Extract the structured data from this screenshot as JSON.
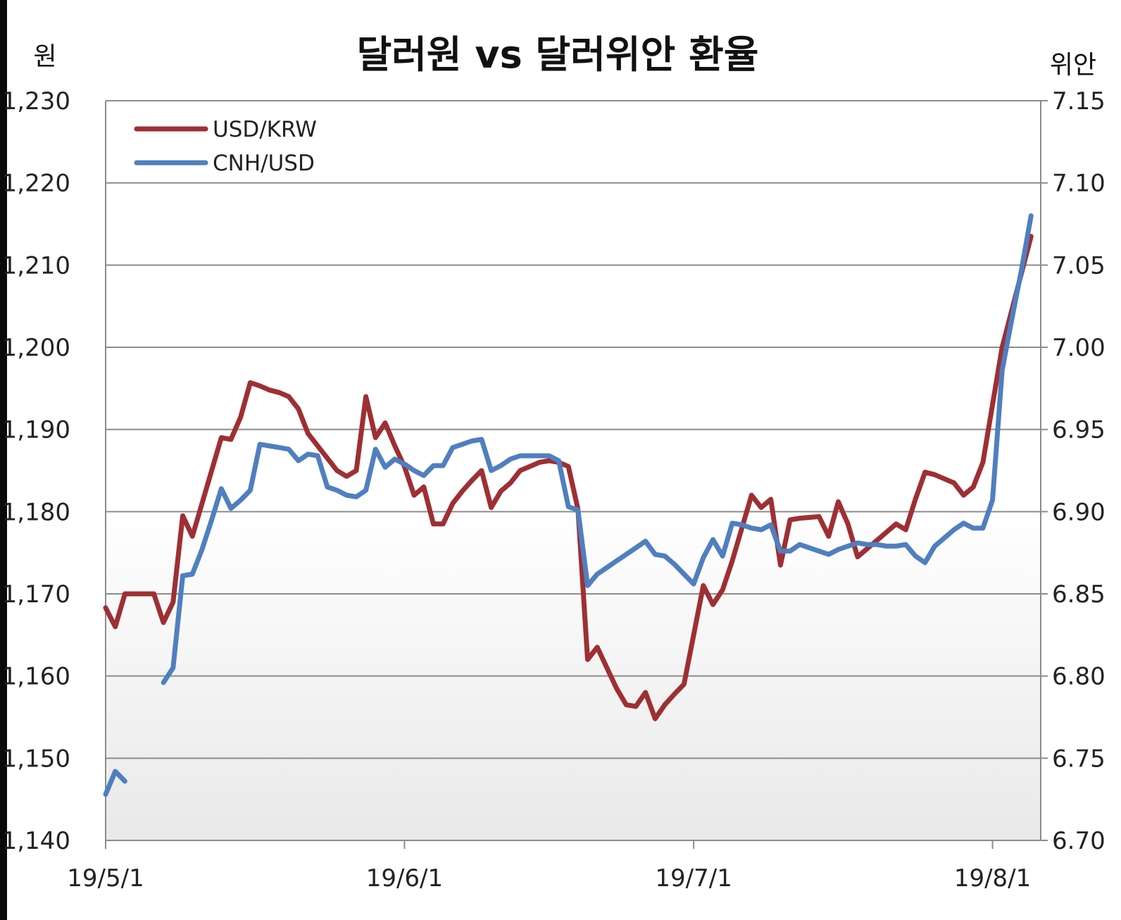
{
  "chart_data": {
    "type": "line",
    "title": "달러원 vs 달러위안 환율",
    "left_axis_label": "원",
    "right_axis_label": "위안",
    "y_left": {
      "range": [
        1140,
        1230
      ],
      "ticks": [
        "1,140",
        "1,150",
        "1,160",
        "1,170",
        "1,180",
        "1,190",
        "1,200",
        "1,210",
        "1,220",
        "1,230"
      ]
    },
    "y_right": {
      "range": [
        6.7,
        7.15
      ],
      "ticks": [
        "6.70",
        "6.75",
        "6.80",
        "6.85",
        "6.90",
        "6.95",
        "7.00",
        "7.05",
        "7.10",
        "7.15"
      ]
    },
    "x_ticks": [
      "19/5/1",
      "19/6/1",
      "19/7/1",
      "19/8/1"
    ],
    "x_tick_days": [
      0,
      31,
      61,
      92
    ],
    "x_range_days": [
      0,
      97
    ],
    "grid": true,
    "legend_position": "top-left",
    "series": [
      {
        "name": "USD/KRW",
        "axis": "left",
        "color": "#9e2f33",
        "points": [
          [
            0,
            1168.3
          ],
          [
            1,
            1166.0
          ],
          [
            2,
            1170.0
          ],
          [
            3,
            1170.0
          ],
          [
            4,
            1170.0
          ],
          [
            5,
            1170.0
          ],
          [
            6,
            1166.5
          ],
          [
            7,
            1169.0
          ],
          [
            8,
            1179.5
          ],
          [
            9,
            1177.0
          ],
          [
            10,
            1181.0
          ],
          [
            11,
            1185.0
          ],
          [
            12,
            1189.0
          ],
          [
            13,
            1188.8
          ],
          [
            14,
            1191.5
          ],
          [
            15,
            1195.7
          ],
          [
            16,
            1195.3
          ],
          [
            17,
            1194.8
          ],
          [
            18,
            1194.5
          ],
          [
            19,
            1194.0
          ],
          [
            20,
            1192.5
          ],
          [
            21,
            1189.5
          ],
          [
            22,
            1188.0
          ],
          [
            23,
            1186.5
          ],
          [
            24,
            1185.0
          ],
          [
            25,
            1184.3
          ],
          [
            26,
            1185.0
          ],
          [
            27,
            1194.0
          ],
          [
            28,
            1189.0
          ],
          [
            29,
            1190.8
          ],
          [
            30,
            1188.0
          ],
          [
            31,
            1185.5
          ],
          [
            32,
            1182.0
          ],
          [
            33,
            1183.0
          ],
          [
            34,
            1178.5
          ],
          [
            35,
            1178.5
          ],
          [
            36,
            1181.0
          ],
          [
            37,
            1182.5
          ],
          [
            38,
            1183.8
          ],
          [
            39,
            1185.0
          ],
          [
            40,
            1180.5
          ],
          [
            41,
            1182.5
          ],
          [
            42,
            1183.5
          ],
          [
            43,
            1185.0
          ],
          [
            44,
            1185.5
          ],
          [
            45,
            1186.0
          ],
          [
            46,
            1186.2
          ],
          [
            47,
            1186.0
          ],
          [
            48,
            1185.5
          ],
          [
            49,
            1180.3
          ],
          [
            50,
            1162.0
          ],
          [
            51,
            1163.5
          ],
          [
            52,
            1161.0
          ],
          [
            53,
            1158.5
          ],
          [
            54,
            1156.5
          ],
          [
            55,
            1156.3
          ],
          [
            56,
            1158.0
          ],
          [
            57,
            1154.8
          ],
          [
            58,
            1156.5
          ],
          [
            59,
            1157.8
          ],
          [
            60,
            1159.0
          ],
          [
            61,
            1165.0
          ],
          [
            62,
            1171.0
          ],
          [
            63,
            1168.7
          ],
          [
            64,
            1170.5
          ],
          [
            65,
            1174.0
          ],
          [
            66,
            1178.0
          ],
          [
            67,
            1182.0
          ],
          [
            68,
            1180.5
          ],
          [
            69,
            1181.5
          ],
          [
            70,
            1173.5
          ],
          [
            71,
            1179.0
          ],
          [
            72,
            1179.2
          ],
          [
            73,
            1179.3
          ],
          [
            74,
            1179.4
          ],
          [
            75,
            1177.0
          ],
          [
            76,
            1181.2
          ],
          [
            77,
            1178.5
          ],
          [
            78,
            1174.5
          ],
          [
            79,
            1175.5
          ],
          [
            80,
            1176.5
          ],
          [
            81,
            1177.5
          ],
          [
            82,
            1178.5
          ],
          [
            83,
            1177.8
          ],
          [
            84,
            1181.5
          ],
          [
            85,
            1184.8
          ],
          [
            86,
            1184.5
          ],
          [
            87,
            1184.0
          ],
          [
            88,
            1183.5
          ],
          [
            89,
            1182.0
          ],
          [
            90,
            1183.0
          ],
          [
            91,
            1186.0
          ],
          [
            92,
            1193.0
          ],
          [
            93,
            1200.0
          ],
          [
            94,
            1204.5
          ],
          [
            95,
            1209.0
          ],
          [
            96,
            1213.5
          ]
        ]
      },
      {
        "name": "CNH/USD",
        "axis": "right",
        "color": "#4f7fbf",
        "segments": [
          [
            [
              0,
              6.728
            ],
            [
              1,
              6.742
            ],
            [
              2,
              6.736
            ]
          ],
          [
            [
              6,
              6.796
            ],
            [
              7,
              6.805
            ],
            [
              8,
              6.861
            ],
            [
              9,
              6.862
            ],
            [
              10,
              6.877
            ],
            [
              11,
              6.895
            ],
            [
              12,
              6.914
            ],
            [
              13,
              6.902
            ],
            [
              14,
              6.907
            ],
            [
              15,
              6.913
            ],
            [
              16,
              6.941
            ],
            [
              17,
              6.94
            ],
            [
              18,
              6.939
            ],
            [
              19,
              6.938
            ],
            [
              20,
              6.931
            ],
            [
              21,
              6.935
            ],
            [
              22,
              6.934
            ],
            [
              23,
              6.915
            ],
            [
              24,
              6.913
            ],
            [
              25,
              6.91
            ],
            [
              26,
              6.909
            ],
            [
              27,
              6.913
            ],
            [
              28,
              6.938
            ],
            [
              29,
              6.927
            ],
            [
              30,
              6.932
            ],
            [
              31,
              6.929
            ],
            [
              32,
              6.925
            ],
            [
              33,
              6.922
            ],
            [
              34,
              6.928
            ],
            [
              35,
              6.928
            ],
            [
              36,
              6.939
            ],
            [
              37,
              6.941
            ],
            [
              38,
              6.943
            ],
            [
              39,
              6.944
            ],
            [
              40,
              6.925
            ],
            [
              41,
              6.928
            ],
            [
              42,
              6.932
            ],
            [
              43,
              6.934
            ],
            [
              44,
              6.934
            ],
            [
              45,
              6.934
            ],
            [
              46,
              6.934
            ],
            [
              47,
              6.931
            ],
            [
              48,
              6.903
            ],
            [
              49,
              6.901
            ],
            [
              50,
              6.855
            ],
            [
              51,
              6.862
            ],
            [
              52,
              6.866
            ],
            [
              53,
              6.87
            ],
            [
              54,
              6.874
            ],
            [
              55,
              6.878
            ],
            [
              56,
              6.882
            ],
            [
              57,
              6.874
            ],
            [
              58,
              6.873
            ],
            [
              59,
              6.868
            ],
            [
              60,
              6.862
            ],
            [
              61,
              6.856
            ],
            [
              62,
              6.872
            ],
            [
              63,
              6.883
            ],
            [
              64,
              6.873
            ],
            [
              65,
              6.893
            ],
            [
              66,
              6.892
            ],
            [
              67,
              6.89
            ],
            [
              68,
              6.889
            ],
            [
              69,
              6.892
            ],
            [
              70,
              6.876
            ],
            [
              71,
              6.876
            ],
            [
              72,
              6.88
            ],
            [
              73,
              6.878
            ],
            [
              74,
              6.876
            ],
            [
              75,
              6.874
            ],
            [
              76,
              6.877
            ],
            [
              77,
              6.879
            ],
            [
              78,
              6.881
            ],
            [
              79,
              6.88
            ],
            [
              80,
              6.88
            ],
            [
              81,
              6.879
            ],
            [
              82,
              6.879
            ],
            [
              83,
              6.88
            ],
            [
              84,
              6.873
            ],
            [
              85,
              6.869
            ],
            [
              86,
              6.879
            ],
            [
              87,
              6.884
            ],
            [
              88,
              6.889
            ],
            [
              89,
              6.893
            ],
            [
              90,
              6.89
            ],
            [
              91,
              6.89
            ],
            [
              92,
              6.907
            ],
            [
              93,
              6.986
            ],
            [
              94,
              7.017
            ],
            [
              95,
              7.047
            ],
            [
              96,
              7.08
            ]
          ]
        ]
      }
    ]
  }
}
